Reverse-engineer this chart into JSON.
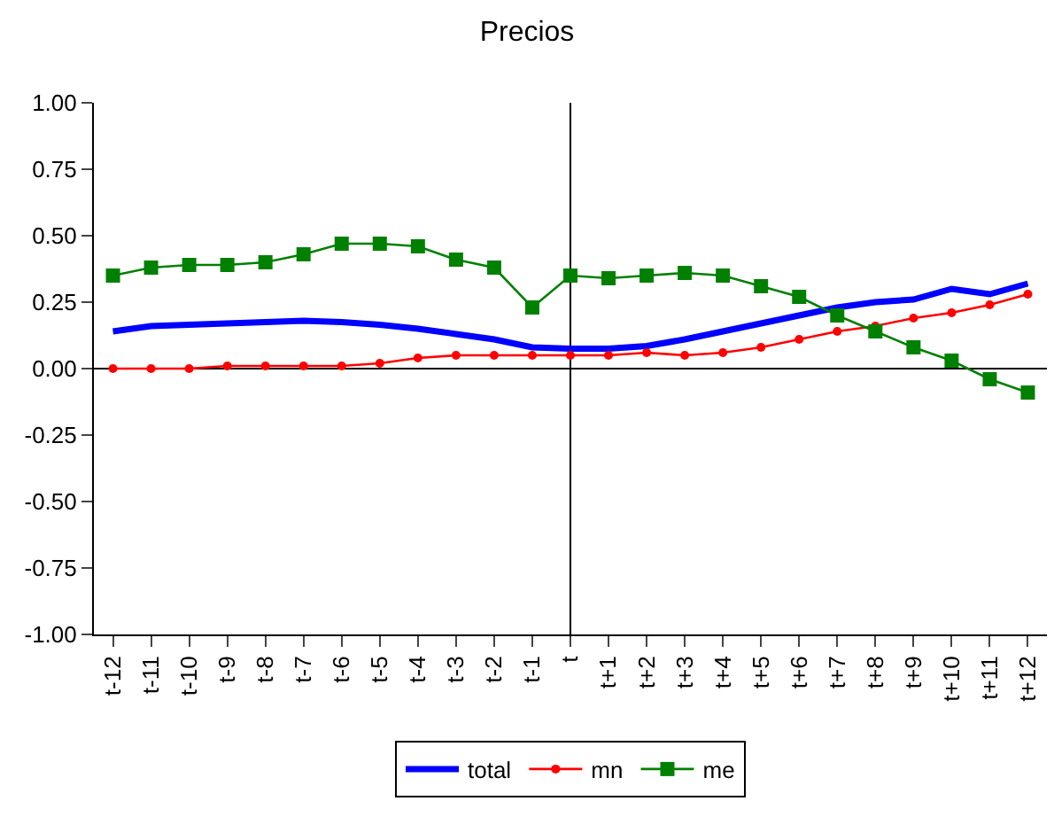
{
  "chart_data": {
    "type": "line",
    "title": "Precios",
    "categories": [
      "t-12",
      "t-11",
      "t-10",
      "t-9",
      "t-8",
      "t-7",
      "t-6",
      "t-5",
      "t-4",
      "t-3",
      "t-2",
      "t-1",
      "t",
      "t+1",
      "t+2",
      "t+3",
      "t+4",
      "t+5",
      "t+6",
      "t+7",
      "t+8",
      "t+9",
      "t+10",
      "t+11",
      "t+12"
    ],
    "series": [
      {
        "name": "total",
        "color": "#0000ff",
        "marker": "none",
        "values": [
          0.14,
          0.16,
          0.165,
          0.17,
          0.175,
          0.18,
          0.175,
          0.165,
          0.15,
          0.13,
          0.11,
          0.08,
          0.075,
          0.075,
          0.085,
          0.11,
          0.14,
          0.17,
          0.2,
          0.23,
          0.25,
          0.26,
          0.3,
          0.28,
          0.32
        ]
      },
      {
        "name": "mn",
        "color": "#ff0000",
        "marker": "circle",
        "values": [
          0,
          0,
          0,
          0.01,
          0.01,
          0.01,
          0.01,
          0.02,
          0.04,
          0.05,
          0.05,
          0.05,
          0.05,
          0.05,
          0.06,
          0.05,
          0.06,
          0.08,
          0.11,
          0.14,
          0.16,
          0.19,
          0.21,
          0.24,
          0.28
        ]
      },
      {
        "name": "me",
        "color": "#008000",
        "marker": "square",
        "values": [
          0.35,
          0.38,
          0.39,
          0.39,
          0.4,
          0.43,
          0.47,
          0.47,
          0.46,
          0.41,
          0.38,
          0.23,
          0.35,
          0.34,
          0.35,
          0.36,
          0.35,
          0.31,
          0.27,
          0.2,
          0.14,
          0.08,
          0.03,
          -0.04,
          -0.09
        ]
      }
    ],
    "ylim": [
      -1,
      1
    ],
    "yticks": [
      {
        "value": -1,
        "label": "-1.00"
      },
      {
        "value": -0.75,
        "label": "-0.75"
      },
      {
        "value": -0.5,
        "label": "-0.50"
      },
      {
        "value": -0.25,
        "label": "-0.25"
      },
      {
        "value": 0,
        "label": "0.00"
      },
      {
        "value": 0.25,
        "label": "0.25"
      },
      {
        "value": 0.5,
        "label": "0.50"
      },
      {
        "value": 0.75,
        "label": "0.75"
      },
      {
        "value": 1,
        "label": "1.00"
      }
    ],
    "ref_lines": [
      {
        "axis": "y",
        "value": 0,
        "color": "#000000"
      },
      {
        "axis": "x",
        "value": "t",
        "color": "#000000"
      }
    ],
    "grid": false,
    "legend": "bottom"
  }
}
